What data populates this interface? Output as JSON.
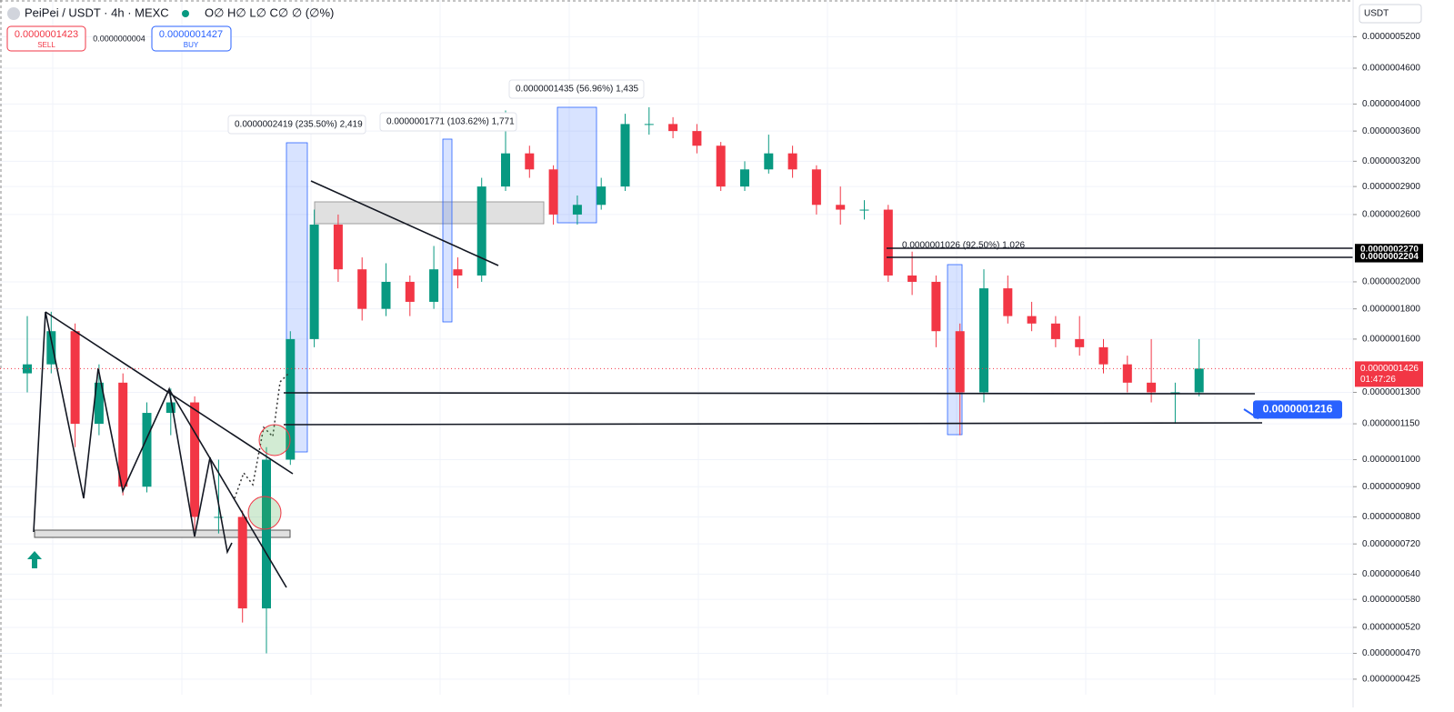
{
  "header": {
    "symbol": "PeiPei / USDT · 4h · MEXC",
    "ohlc": "O∅ H∅ L∅ C∅ ∅ (∅%)",
    "sell_price": "0.0000001423",
    "sell_label": "SELL",
    "spread": "0.0000000004",
    "buy_price": "0.0000001427",
    "buy_label": "BUY",
    "currency": "USDT"
  },
  "chart_data": {
    "type": "candlestick",
    "log_scale": true,
    "grid": true,
    "up_color": "#089981",
    "down_color": "#f23645",
    "ylim": [
      4e-08,
      6e-07
    ],
    "yticks": [
      {
        "value": 5.2e-07,
        "label": "0.0000005200"
      },
      {
        "value": 4.6e-07,
        "label": "0.0000004600"
      },
      {
        "value": 4e-07,
        "label": "0.0000004000"
      },
      {
        "value": 3.6e-07,
        "label": "0.0000003600"
      },
      {
        "value": 3.2e-07,
        "label": "0.0000003200"
      },
      {
        "value": 2.9e-07,
        "label": "0.0000002900"
      },
      {
        "value": 2.6e-07,
        "label": "0.0000002600"
      },
      {
        "value": 2e-07,
        "label": "0.0000002000"
      },
      {
        "value": 1.8e-07,
        "label": "0.0000001800"
      },
      {
        "value": 1.6e-07,
        "label": "0.0000001600"
      },
      {
        "value": 1.3e-07,
        "label": "0.0000001300"
      },
      {
        "value": 1.15e-07,
        "label": "0.0000001150"
      },
      {
        "value": 1e-07,
        "label": "0.0000001000"
      },
      {
        "value": 9e-08,
        "label": "0.0000000900"
      },
      {
        "value": 8e-08,
        "label": "0.0000000800"
      },
      {
        "value": 7.2e-08,
        "label": "0.0000000720"
      },
      {
        "value": 6.4e-08,
        "label": "0.0000000640"
      },
      {
        "value": 5.8e-08,
        "label": "0.0000000580"
      },
      {
        "value": 5.2e-08,
        "label": "0.0000000520"
      },
      {
        "value": 4.7e-08,
        "label": "0.0000000470"
      },
      {
        "value": 4.25e-08,
        "label": "0.0000000425"
      }
    ],
    "ohlc": [
      [
        1.4e-07,
        1.75e-07,
        1.3e-07,
        1.45e-07
      ],
      [
        1.45e-07,
        1.78e-07,
        1.4e-07,
        1.65e-07
      ],
      [
        1.65e-07,
        1.7e-07,
        1.05e-07,
        1.15e-07
      ],
      [
        1.15e-07,
        1.45e-07,
        1.1e-07,
        1.35e-07
      ],
      [
        1.35e-07,
        1.4e-07,
        8.7e-08,
        9e-08
      ],
      [
        9e-08,
        1.25e-07,
        8.8e-08,
        1.2e-07
      ],
      [
        1.2e-07,
        1.32e-07,
        1.1e-07,
        1.25e-07
      ],
      [
        1.25e-07,
        1.28e-07,
        7.6e-08,
        8e-08
      ],
      [
        8e-08,
        1e-07,
        7.5e-08,
        8e-08
      ],
      [
        8e-08,
        8.2e-08,
        5.3e-08,
        5.6e-08
      ],
      [
        5.6e-08,
        1.05e-07,
        4.7e-08,
        1e-07
      ],
      [
        1e-07,
        1.65e-07,
        9.8e-08,
        1.6e-07
      ],
      [
        1.6e-07,
        2.65e-07,
        1.55e-07,
        2.5e-07
      ],
      [
        2.5e-07,
        2.6e-07,
        2e-07,
        2.1e-07
      ],
      [
        2.1e-07,
        2.2e-07,
        1.72e-07,
        1.8e-07
      ],
      [
        1.8e-07,
        2.15e-07,
        1.75e-07,
        2e-07
      ],
      [
        2e-07,
        2.05e-07,
        1.75e-07,
        1.85e-07
      ],
      [
        1.85e-07,
        2.3e-07,
        1.8e-07,
        2.1e-07
      ],
      [
        2.1e-07,
        2.2e-07,
        1.95e-07,
        2.05e-07
      ],
      [
        2.05e-07,
        3e-07,
        2e-07,
        2.9e-07
      ],
      [
        2.9e-07,
        3.9e-07,
        2.85e-07,
        3.3e-07
      ],
      [
        3.3e-07,
        3.4e-07,
        3e-07,
        3.1e-07
      ],
      [
        3.1e-07,
        3.15e-07,
        2.5e-07,
        2.6e-07
      ],
      [
        2.6e-07,
        2.8e-07,
        2.5e-07,
        2.7e-07
      ],
      [
        2.7e-07,
        3e-07,
        2.65e-07,
        2.9e-07
      ],
      [
        2.9e-07,
        3.85e-07,
        2.85e-07,
        3.7e-07
      ],
      [
        3.7e-07,
        3.95e-07,
        3.55e-07,
        3.7e-07
      ],
      [
        3.7e-07,
        3.8e-07,
        3.5e-07,
        3.6e-07
      ],
      [
        3.6e-07,
        3.7e-07,
        3.3e-07,
        3.4e-07
      ],
      [
        3.4e-07,
        3.45e-07,
        2.85e-07,
        2.9e-07
      ],
      [
        2.9e-07,
        3.2e-07,
        2.85e-07,
        3.1e-07
      ],
      [
        3.1e-07,
        3.55e-07,
        3.05e-07,
        3.3e-07
      ],
      [
        3.3e-07,
        3.4e-07,
        3e-07,
        3.1e-07
      ],
      [
        3.1e-07,
        3.15e-07,
        2.6e-07,
        2.7e-07
      ],
      [
        2.7e-07,
        2.9e-07,
        2.5e-07,
        2.65e-07
      ],
      [
        2.65e-07,
        2.75e-07,
        2.55e-07,
        2.65e-07
      ],
      [
        2.65e-07,
        2.7e-07,
        2e-07,
        2.05e-07
      ],
      [
        2.05e-07,
        2.25e-07,
        1.9e-07,
        2e-07
      ],
      [
        2e-07,
        2.05e-07,
        1.55e-07,
        1.65e-07
      ],
      [
        1.65e-07,
        1.7e-07,
        1.1e-07,
        1.3e-07
      ],
      [
        1.3e-07,
        2.1e-07,
        1.25e-07,
        1.95e-07
      ],
      [
        1.95e-07,
        2.05e-07,
        1.7e-07,
        1.75e-07
      ],
      [
        1.75e-07,
        1.85e-07,
        1.65e-07,
        1.7e-07
      ],
      [
        1.7e-07,
        1.75e-07,
        1.55e-07,
        1.6e-07
      ],
      [
        1.6e-07,
        1.75e-07,
        1.5e-07,
        1.55e-07
      ],
      [
        1.55e-07,
        1.6e-07,
        1.4e-07,
        1.45e-07
      ],
      [
        1.45e-07,
        1.5e-07,
        1.3e-07,
        1.35e-07
      ],
      [
        1.35e-07,
        1.6e-07,
        1.25e-07,
        1.3e-07
      ],
      [
        1.3e-07,
        1.35e-07,
        1.15e-07,
        1.3e-07
      ],
      [
        1.3e-07,
        1.6e-07,
        1.28e-07,
        1.426e-07
      ]
    ],
    "last_price": {
      "value": 1.426e-07,
      "label": "0.0000001426"
    },
    "countdown": "01:47:26",
    "price_lines": [
      {
        "value": 2.27e-07,
        "label": "0.0000002270"
      },
      {
        "value": 2.204e-07,
        "label": "0.0000002204"
      }
    ],
    "alert": {
      "value": 1.216e-07,
      "label": "0.0000001216"
    },
    "measures": [
      "0.0000002419 (235.50%) 2,419",
      "0.0000001771 (103.62%) 1,771",
      "0.0000001435 (56.96%) 1,435",
      "0.0000001026 (92.50%) 1,026"
    ]
  }
}
